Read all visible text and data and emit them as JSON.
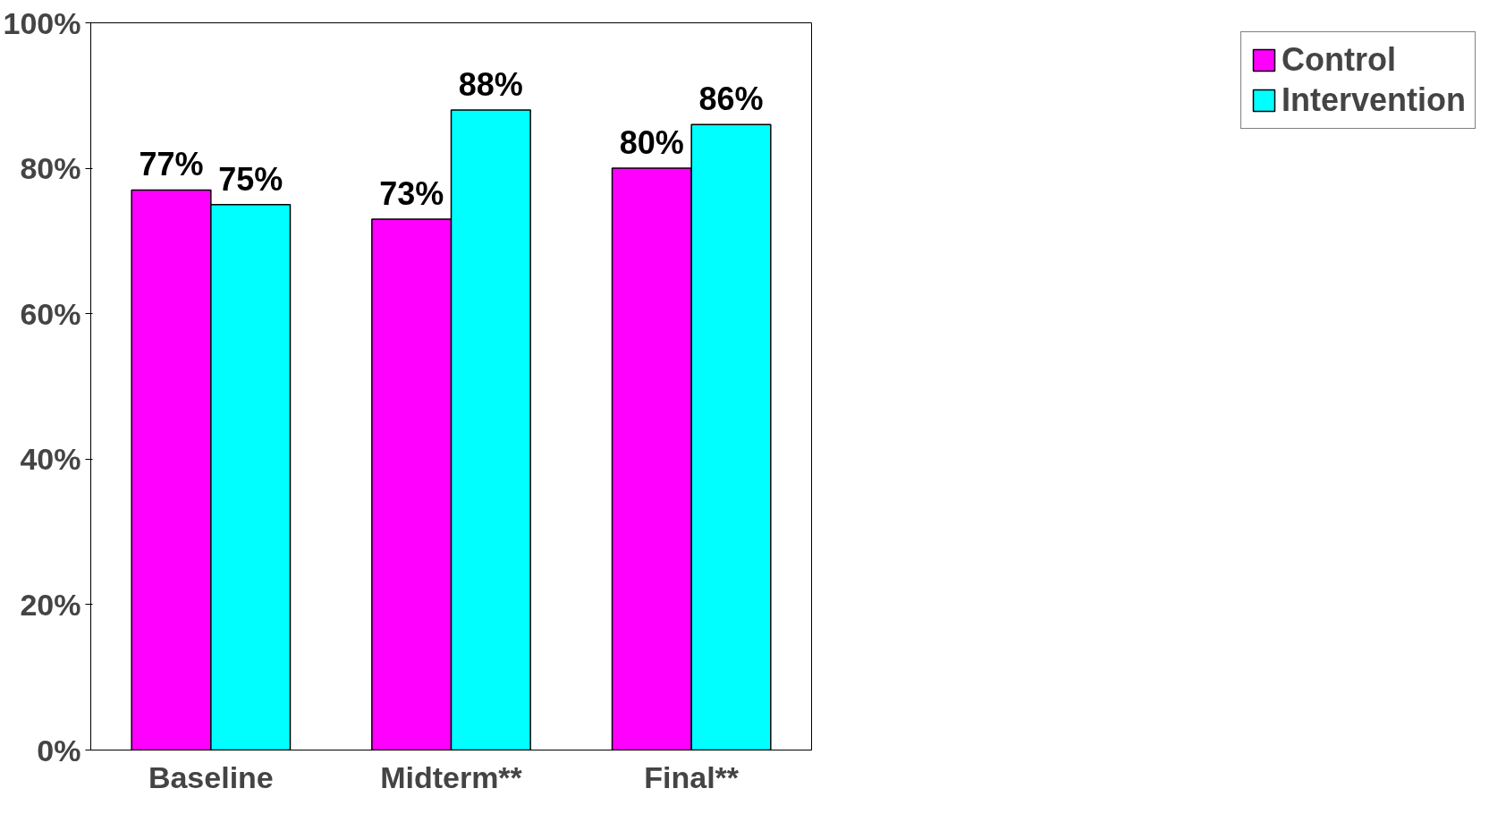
{
  "chart_data": {
    "type": "bar",
    "categories": [
      "Baseline",
      "Midterm**",
      "Final**"
    ],
    "series": [
      {
        "name": "Control",
        "color": "#ff00ff",
        "values": [
          77,
          73,
          80
        ],
        "value_labels": [
          "77%",
          "73%",
          "80%"
        ]
      },
      {
        "name": "Intervention",
        "color": "#00ffff",
        "values": [
          75,
          88,
          86
        ],
        "value_labels": [
          "75%",
          "88%",
          "86%"
        ]
      }
    ],
    "ylim": [
      0,
      100
    ],
    "yticks": [
      {
        "value": 0,
        "label": "0%"
      },
      {
        "value": 20,
        "label": "20%"
      },
      {
        "value": 40,
        "label": "40%"
      },
      {
        "value": 60,
        "label": "60%"
      },
      {
        "value": 80,
        "label": "80%"
      },
      {
        "value": 100,
        "label": "100%"
      }
    ],
    "grid": false,
    "legend": "right"
  }
}
